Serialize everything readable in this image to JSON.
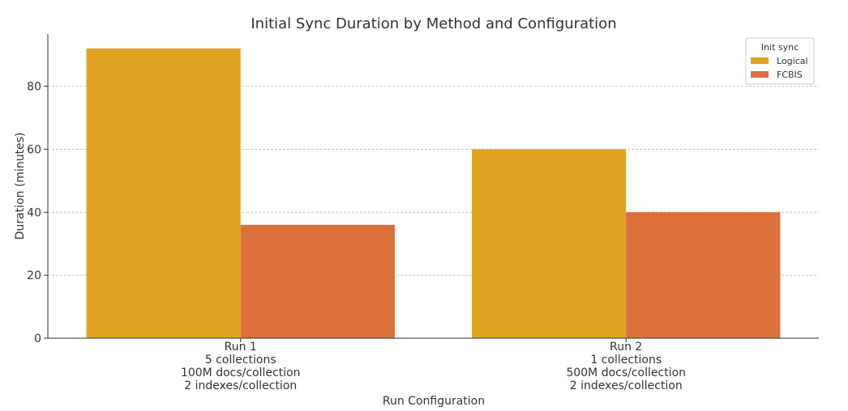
{
  "chart_data": {
    "type": "bar",
    "title": "Initial Sync Duration by Method and Configuration",
    "xlabel": "Run Configuration",
    "ylabel": "Duration (minutes)",
    "categories": [
      [
        "Run 1",
        "5 collections",
        "100M docs/collection",
        "2 indexes/collection"
      ],
      [
        "Run 2",
        "1 collections",
        "500M docs/collection",
        "2 indexes/collection"
      ]
    ],
    "series": [
      {
        "name": "Logical",
        "color": "#DFA41F",
        "values": [
          92,
          60
        ]
      },
      {
        "name": "FCBIS",
        "color": "#DB703A",
        "values": [
          36,
          40
        ]
      }
    ],
    "ylim": [
      0,
      96.6
    ],
    "yticks": [
      0,
      20,
      40,
      60,
      80
    ],
    "grid": "y",
    "legend": {
      "title": "Init sync",
      "position": "top-right"
    }
  }
}
